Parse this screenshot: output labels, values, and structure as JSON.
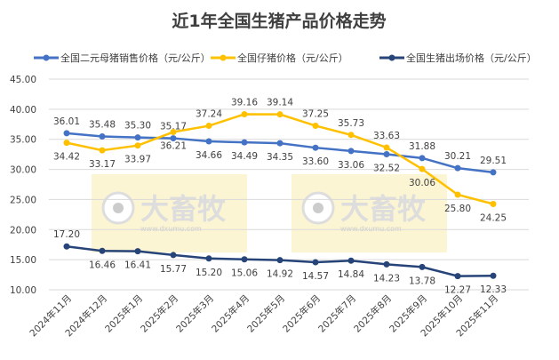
{
  "chart_data": {
    "type": "line",
    "title": "近1年全国生猪产品价格走势",
    "categories": [
      "2024年11月",
      "2024年12月",
      "2025年1月",
      "2025年2月",
      "2025年3月",
      "2025年4月",
      "2025年5月",
      "2025年6月",
      "2025年7月",
      "2025年8月",
      "2025年9月",
      "2025年10月",
      "2025年11月"
    ],
    "ylim": [
      10,
      45
    ],
    "yticks": [
      "10.00",
      "15.00",
      "20.00",
      "25.00",
      "30.00",
      "35.00",
      "40.00",
      "45.00"
    ],
    "grid": true,
    "legend_position": "top",
    "series": [
      {
        "name": "全国二元母猪销售价格（元/公斤）",
        "color": "#4472C4",
        "values": [
          36.01,
          35.48,
          35.3,
          35.17,
          34.66,
          34.49,
          34.35,
          33.6,
          33.06,
          32.52,
          31.88,
          30.21,
          29.51
        ],
        "labels": [
          "36.01",
          "35.48",
          "35.30",
          "35.17",
          "34.66",
          "34.49",
          "34.35",
          "33.60",
          "33.06",
          "32.52",
          "31.88",
          "30.21",
          "29.51"
        ]
      },
      {
        "name": "全国仔猪价格（元/公斤）",
        "color": "#FFC000",
        "values": [
          34.42,
          33.17,
          33.97,
          36.21,
          37.24,
          39.16,
          39.14,
          37.25,
          35.73,
          33.63,
          30.06,
          25.8,
          24.25
        ],
        "labels": [
          "34.42",
          "33.17",
          "33.97",
          "36.21",
          "37.24",
          "39.16",
          "39.14",
          "37.25",
          "35.73",
          "33.63",
          "30.06",
          "25.80",
          "24.25"
        ]
      },
      {
        "name": "全国生猪出场价格（元/公斤）",
        "color": "#264478",
        "values": [
          17.2,
          16.46,
          16.41,
          15.77,
          15.2,
          15.06,
          14.92,
          14.57,
          14.84,
          14.23,
          13.78,
          12.27,
          12.33
        ],
        "labels": [
          "17.20",
          "16.46",
          "16.41",
          "15.77",
          "15.20",
          "15.06",
          "14.92",
          "14.57",
          "14.84",
          "14.23",
          "13.78",
          "12.27",
          "12.33"
        ]
      }
    ]
  },
  "watermark": {
    "name": "大畜牧",
    "url": "www.dxumu.com"
  }
}
